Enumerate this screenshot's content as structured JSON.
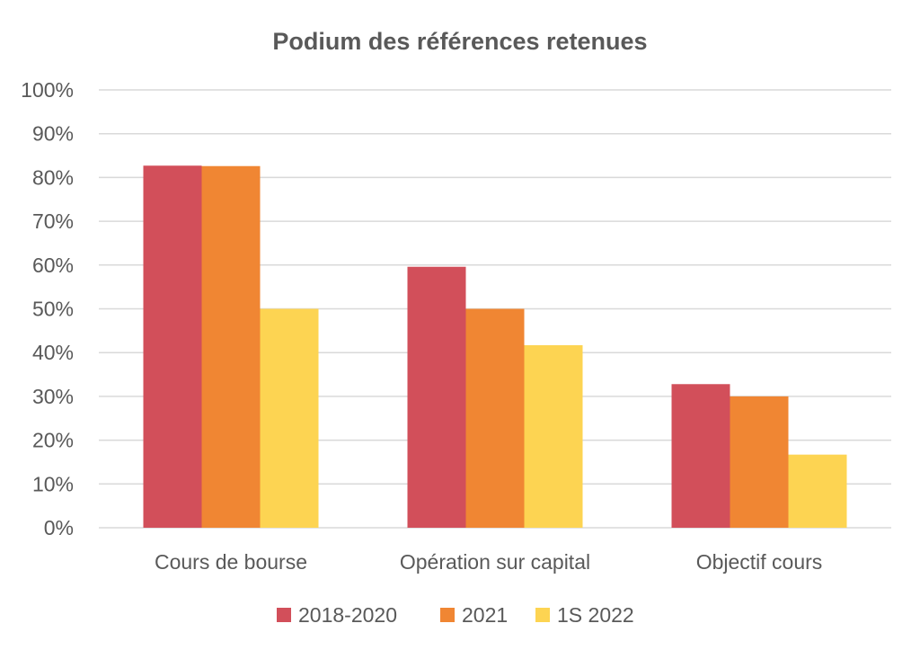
{
  "chart_data": {
    "type": "bar",
    "title": "Podium des références retenues",
    "xlabel": "",
    "ylabel": "",
    "categories": [
      "Cours de bourse",
      "Opération sur capital",
      "Objectif cours"
    ],
    "series": [
      {
        "name": "2018-2020",
        "values": [
          82.7,
          59.6,
          32.8
        ],
        "color": "#d24f5a"
      },
      {
        "name": "2021",
        "values": [
          82.6,
          50.0,
          30.0
        ],
        "color": "#f08633"
      },
      {
        "name": "1S 2022",
        "values": [
          50.0,
          41.7,
          16.7
        ],
        "color": "#fdd452"
      }
    ],
    "ylim": [
      0,
      100
    ],
    "yticks": [
      0,
      10,
      20,
      30,
      40,
      50,
      60,
      70,
      80,
      90,
      100
    ],
    "ytick_labels": [
      "0%",
      "10%",
      "20%",
      "30%",
      "40%",
      "50%",
      "60%",
      "70%",
      "80%",
      "90%",
      "100%"
    ],
    "grid": true,
    "legend_position": "bottom"
  }
}
